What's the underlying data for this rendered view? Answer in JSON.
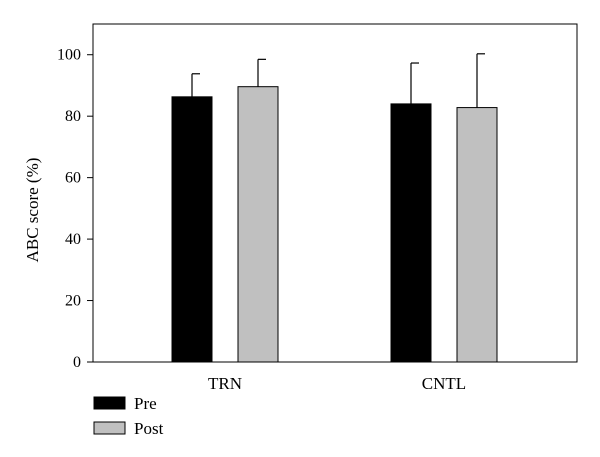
{
  "chart_data": {
    "type": "bar",
    "title": "",
    "xlabel": "",
    "ylabel": "ABC score (%)",
    "ylim": [
      0,
      110
    ],
    "yticks": [
      0,
      20,
      40,
      60,
      80,
      100
    ],
    "categories": [
      "TRN",
      "CNTL"
    ],
    "series": [
      {
        "name": "Pre",
        "color": "#000000",
        "values": [
          86.3,
          84.0
        ],
        "error": [
          7.5,
          13.3
        ]
      },
      {
        "name": "Post",
        "color": "#c0c0c0",
        "values": [
          89.6,
          82.8
        ],
        "error": [
          8.9,
          17.5
        ]
      }
    ],
    "legend_position": "bottom-left",
    "grid": false
  }
}
